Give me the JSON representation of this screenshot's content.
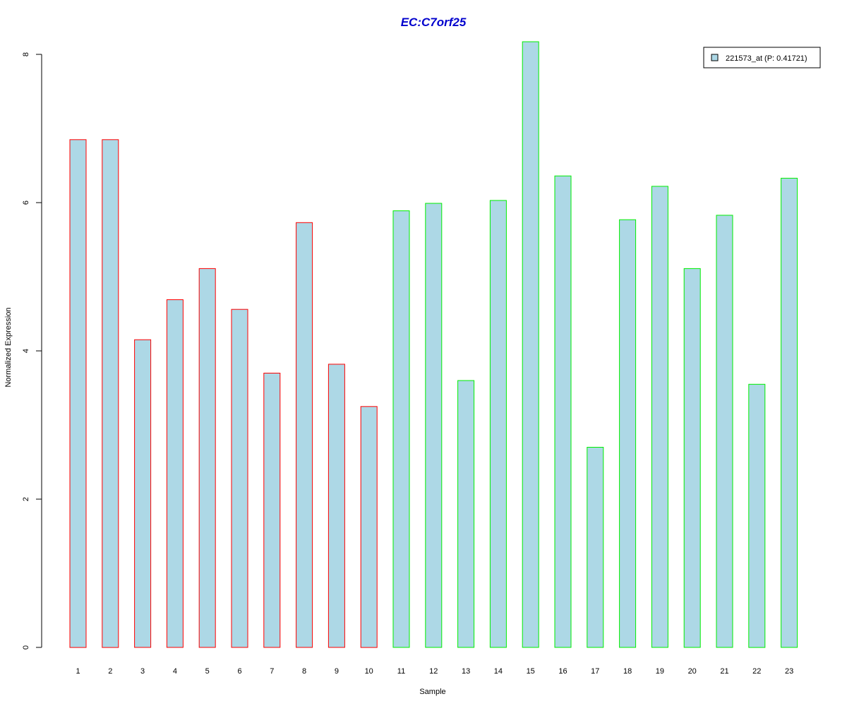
{
  "chart_data": {
    "type": "bar",
    "title": "EC:C7orf25",
    "xlabel": "Sample",
    "ylabel": "Normalized Expression",
    "categories": [
      "1",
      "2",
      "3",
      "4",
      "5",
      "6",
      "7",
      "8",
      "9",
      "10",
      "11",
      "12",
      "13",
      "14",
      "15",
      "16",
      "17",
      "18",
      "19",
      "20",
      "21",
      "22",
      "23"
    ],
    "series": [
      {
        "name": "221573_at (P: 0.41721)",
        "values": [
          6.85,
          6.85,
          4.15,
          4.69,
          5.11,
          4.56,
          3.7,
          5.73,
          3.82,
          3.25,
          5.89,
          5.99,
          3.6,
          6.03,
          8.17,
          6.36,
          2.7,
          5.77,
          6.22,
          5.11,
          5.83,
          3.55,
          6.33
        ]
      }
    ],
    "group_border_colors": [
      "#ff0000",
      "#ff0000",
      "#ff0000",
      "#ff0000",
      "#ff0000",
      "#ff0000",
      "#ff0000",
      "#ff0000",
      "#ff0000",
      "#ff0000",
      "#00ee00",
      "#00ee00",
      "#00ee00",
      "#00ee00",
      "#00ee00",
      "#00ee00",
      "#00ee00",
      "#00ee00",
      "#00ee00",
      "#00ee00",
      "#00ee00",
      "#00ee00",
      "#00ee00"
    ],
    "yticks": [
      "0",
      "2",
      "4",
      "6",
      "8"
    ],
    "ylim": [
      0,
      8.2
    ],
    "bar_fill": "#add8e6",
    "title_color": "#0000cd",
    "legend_position": "top-right",
    "grid": false
  }
}
